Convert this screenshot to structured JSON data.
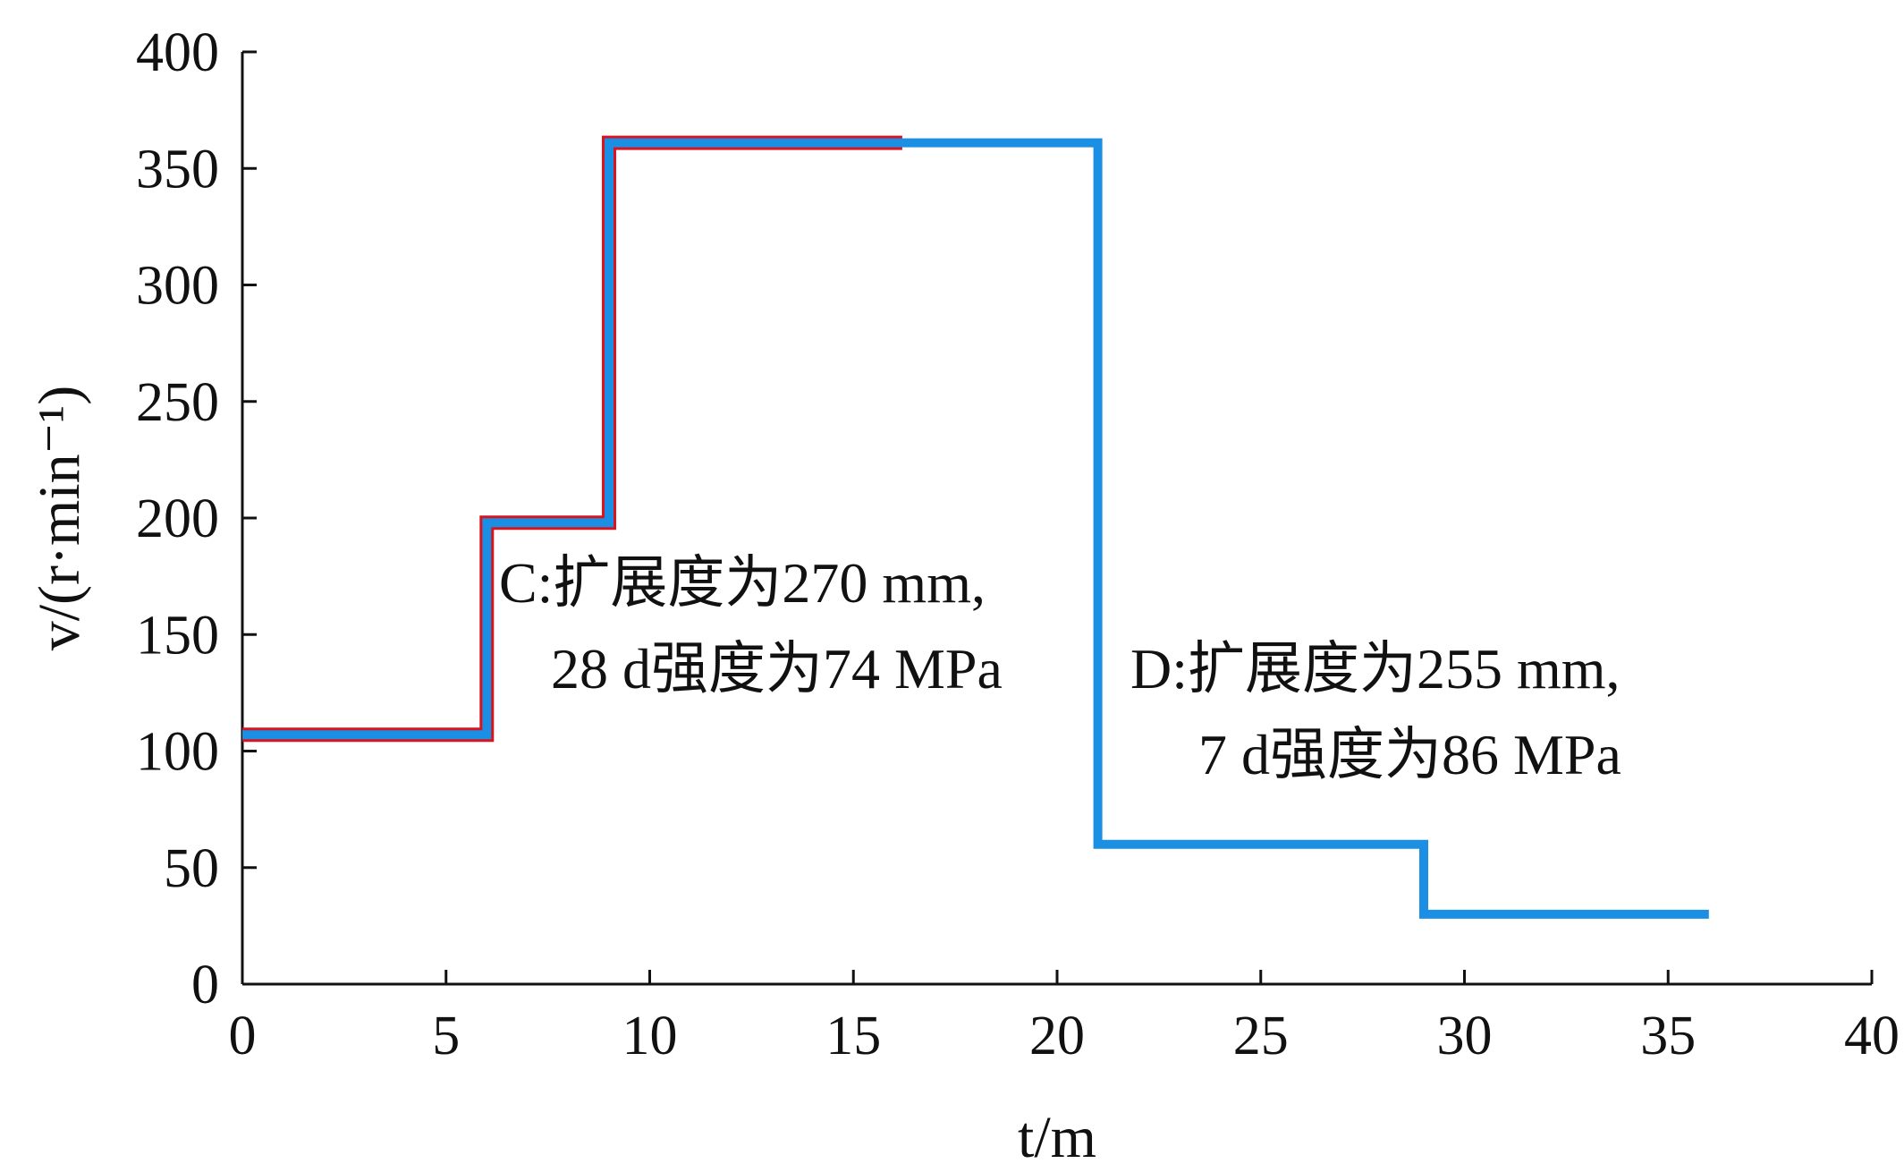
{
  "chart_data": {
    "type": "line",
    "title": "",
    "xlabel": "t/m",
    "ylabel": "v/(r·min⁻¹)",
    "xlim": [
      0,
      40
    ],
    "ylim": [
      0,
      400
    ],
    "xticks": [
      0,
      5,
      10,
      15,
      20,
      25,
      30,
      35,
      40
    ],
    "yticks": [
      0,
      50,
      100,
      150,
      200,
      250,
      300,
      350,
      400
    ],
    "grid": false,
    "legend": "none",
    "series": [
      {
        "color": "#d9141e",
        "x": [
          0,
          6,
          6,
          9,
          9,
          16.2
        ],
        "y": [
          107,
          107,
          198,
          198,
          361,
          361
        ]
      },
      {
        "color": "#1a8fe3",
        "x": [
          0,
          6,
          6,
          9,
          9,
          21,
          21,
          29,
          29,
          36
        ],
        "y": [
          107,
          107,
          198,
          198,
          361,
          361,
          60,
          60,
          30,
          30
        ]
      }
    ],
    "annotations": [
      {
        "id": "C",
        "lines": [
          "C:扩展度为270 mm,",
          "28 d强度为74 MPa"
        ],
        "x": 6.3,
        "y": 164
      },
      {
        "id": "D",
        "lines": [
          "D:扩展度为255 mm,",
          "7 d强度为86 MPa"
        ],
        "x": 21.8,
        "y": 127
      }
    ]
  }
}
